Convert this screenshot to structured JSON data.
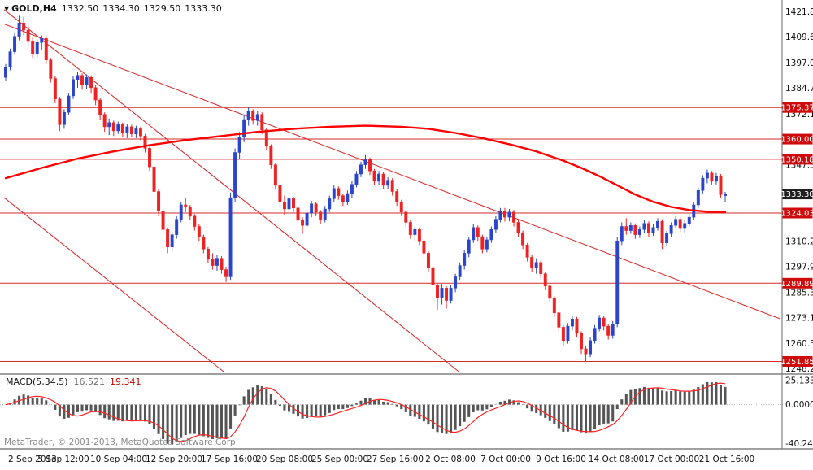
{
  "header": {
    "marker": "▼",
    "symbol": "GOLD,H4",
    "open": "1332.50",
    "high": "1334.30",
    "low": "1329.50",
    "close": "1333.30"
  },
  "footer": {
    "copyright": "MetaTrader, © 2001-2013, MetaQuotes Software Corp."
  },
  "macd_panel": {
    "title": "MACD(5,34,5)",
    "value": "16.521",
    "signal_value": "19.341"
  },
  "colors": {
    "up_candle": "#2b44cc",
    "down_candle": "#ee2222",
    "ma_line": "#ff0000",
    "hline": "#d42a2a",
    "trendline": "#d83030",
    "tag_bg": "#cf0a0a",
    "tag_text": "#ffffff",
    "current_tag_bg": "#1f1f1f",
    "current_line": "#a8a8a8",
    "macd_bar": "#555555",
    "macd_signal": "#ff2222",
    "separator": "#808080",
    "axis_text": "#111111"
  },
  "chart_data": {
    "type": "candlestick",
    "title": "GOLD,H4",
    "symbol": "GOLD",
    "timeframe": "H4",
    "current_price": 1333.3,
    "current_bar": {
      "open": 1332.5,
      "high": 1334.3,
      "low": 1329.5,
      "close": 1333.3
    },
    "y_range": {
      "max": 1424.5,
      "min": 1246.5
    },
    "y_axis_labels": [
      1421.85,
      1409.6,
      1397.0,
      1384.75,
      1372.15,
      1347.3,
      1310.2,
      1297.95,
      1285.35,
      1273.1,
      1260.5,
      1248.25
    ],
    "hlines": [
      1375.37,
      1360.0,
      1350.18,
      1324.03,
      1289.89,
      1251.85
    ],
    "x_labels": [
      "2 Sep 2013",
      "5 Sep 12:00",
      "10 Sep 04:00",
      "12 Sep 20:00",
      "17 Sep 16:00",
      "20 Sep 08:00",
      "25 Sep 00:00",
      "27 Sep 16:00",
      "2 Oct 08:00",
      "7 Oct 00:00",
      "9 Oct 16:00",
      "14 Oct 08:00",
      "17 Oct 00:00",
      "21 Oct 16:00"
    ],
    "trendlines": [
      {
        "x1_frac": 0.0,
        "p1": 1423.0,
        "x2_frac": 0.587,
        "p2": 1246.5
      },
      {
        "x1_frac": 0.0,
        "p1": 1331.5,
        "x2_frac": 0.284,
        "p2": 1246.5
      },
      {
        "x1_frac": 0.0,
        "p1": 1416.0,
        "x2_frac": 1.0,
        "p2": 1272.5
      }
    ],
    "ma": {
      "name": "moving-average",
      "points": [
        [
          0,
          1341
        ],
        [
          8,
          1346
        ],
        [
          16,
          1350.5
        ],
        [
          24,
          1354
        ],
        [
          32,
          1357
        ],
        [
          40,
          1359.5
        ],
        [
          48,
          1361.5
        ],
        [
          56,
          1363.5
        ],
        [
          64,
          1365
        ],
        [
          72,
          1366
        ],
        [
          80,
          1366.5
        ],
        [
          88,
          1366
        ],
        [
          94,
          1365
        ],
        [
          100,
          1363
        ],
        [
          106,
          1360.5
        ],
        [
          112,
          1357.5
        ],
        [
          118,
          1354
        ],
        [
          124,
          1349.5
        ],
        [
          128,
          1346
        ],
        [
          132,
          1342
        ],
        [
          136,
          1337.5
        ],
        [
          140,
          1333
        ],
        [
          144,
          1329.5
        ],
        [
          148,
          1327
        ],
        [
          152,
          1325.5
        ],
        [
          156,
          1324.7
        ],
        [
          160,
          1324.5
        ]
      ]
    },
    "candles": [
      [
        1390,
        1396.5,
        1388.5,
        1395
      ],
      [
        1395,
        1404,
        1393.5,
        1402.5
      ],
      [
        1402.5,
        1412,
        1401,
        1410
      ],
      [
        1410,
        1420,
        1408,
        1416.5
      ],
      [
        1416.5,
        1419.5,
        1410.5,
        1413
      ],
      [
        1413,
        1415.5,
        1405.5,
        1407.5
      ],
      [
        1407.5,
        1409.5,
        1399.5,
        1401.5
      ],
      [
        1401.5,
        1408.5,
        1399.9,
        1407
      ],
      [
        1407,
        1410.5,
        1403.5,
        1409
      ],
      [
        1409,
        1410,
        1396.5,
        1398.5
      ],
      [
        1398.5,
        1399.5,
        1387.5,
        1389.5
      ],
      [
        1389.5,
        1390.5,
        1377.5,
        1379.5
      ],
      [
        1379.5,
        1380.5,
        1363.9,
        1367
      ],
      [
        1367,
        1374.5,
        1365,
        1373
      ],
      [
        1373,
        1382.5,
        1371.5,
        1381
      ],
      [
        1381,
        1390.5,
        1379.5,
        1389
      ],
      [
        1389,
        1392.5,
        1385,
        1391
      ],
      [
        1391,
        1392,
        1384,
        1386.5
      ],
      [
        1386.5,
        1391.5,
        1384.5,
        1390
      ],
      [
        1390,
        1391,
        1382.5,
        1385
      ],
      [
        1385,
        1386.5,
        1376.5,
        1379
      ],
      [
        1379,
        1380,
        1369.5,
        1372
      ],
      [
        1372,
        1373,
        1363.5,
        1366
      ],
      [
        1366,
        1370,
        1362,
        1368
      ],
      [
        1368,
        1369,
        1361.5,
        1364
      ],
      [
        1364,
        1368.5,
        1362.5,
        1367
      ],
      [
        1367,
        1368,
        1361,
        1363
      ],
      [
        1363,
        1367.5,
        1360.5,
        1366
      ],
      [
        1366,
        1367,
        1360.9,
        1362.5
      ],
      [
        1362.5,
        1366.5,
        1360.5,
        1365
      ],
      [
        1365,
        1366,
        1359.5,
        1361.5
      ],
      [
        1361.5,
        1362.5,
        1353.5,
        1355.5
      ],
      [
        1355.5,
        1356.5,
        1344.5,
        1346.5
      ],
      [
        1346.5,
        1347.5,
        1332.5,
        1334.5
      ],
      [
        1334.5,
        1336,
        1322.5,
        1325
      ],
      [
        1325,
        1326,
        1313.5,
        1316
      ],
      [
        1316,
        1317,
        1304.5,
        1307.5
      ],
      [
        1307.5,
        1315,
        1305.5,
        1313.5
      ],
      [
        1313.5,
        1322.5,
        1311.5,
        1321
      ],
      [
        1321,
        1329.5,
        1319.5,
        1328
      ],
      [
        1328,
        1331.5,
        1324.5,
        1327
      ],
      [
        1327,
        1328,
        1320.5,
        1322.5
      ],
      [
        1322.5,
        1323.5,
        1315.5,
        1317.5
      ],
      [
        1317.5,
        1318.5,
        1310.5,
        1312.5
      ],
      [
        1312.5,
        1313.5,
        1304.5,
        1306.5
      ],
      [
        1306.5,
        1307.5,
        1299.5,
        1301.5
      ],
      [
        1301.5,
        1304.5,
        1296.5,
        1298.5
      ],
      [
        1298.5,
        1303.5,
        1296,
        1302
      ],
      [
        1302,
        1303,
        1294.5,
        1296.5
      ],
      [
        1296.5,
        1298,
        1290.5,
        1293
      ],
      [
        1293,
        1334,
        1291.5,
        1331.5
      ],
      [
        1331.5,
        1355.5,
        1329.5,
        1353.5
      ],
      [
        1353.5,
        1363.5,
        1350.5,
        1361
      ],
      [
        1361,
        1372,
        1358.5,
        1369.5
      ],
      [
        1369.5,
        1375.4,
        1366.5,
        1373.5
      ],
      [
        1373.5,
        1374.5,
        1367,
        1369
      ],
      [
        1369,
        1373.5,
        1366.5,
        1372
      ],
      [
        1372,
        1373,
        1362.5,
        1364.5
      ],
      [
        1364.5,
        1365.5,
        1354.5,
        1356.5
      ],
      [
        1356.5,
        1357.5,
        1345.5,
        1347.5
      ],
      [
        1347.5,
        1348.5,
        1335.5,
        1337.5
      ],
      [
        1337.5,
        1339,
        1327.5,
        1329.5
      ],
      [
        1329.5,
        1332.5,
        1322.9,
        1326
      ],
      [
        1326,
        1332.5,
        1324,
        1331
      ],
      [
        1331,
        1332,
        1324.5,
        1326.5
      ],
      [
        1326.5,
        1327.5,
        1318.5,
        1320.5
      ],
      [
        1320.5,
        1322,
        1313.9,
        1318
      ],
      [
        1318,
        1325.5,
        1316.5,
        1324
      ],
      [
        1324,
        1330,
        1322,
        1328.5
      ],
      [
        1328.5,
        1329.5,
        1322.5,
        1324.5
      ],
      [
        1324.5,
        1325.5,
        1318.5,
        1321
      ],
      [
        1321,
        1327.5,
        1319.5,
        1326
      ],
      [
        1326,
        1332.5,
        1324.5,
        1331
      ],
      [
        1331,
        1337.5,
        1329.5,
        1336
      ],
      [
        1336,
        1337,
        1330.5,
        1332.5
      ],
      [
        1332.5,
        1333.5,
        1327.5,
        1329.5
      ],
      [
        1329.5,
        1335,
        1328,
        1333.5
      ],
      [
        1333.5,
        1339.5,
        1331.5,
        1338
      ],
      [
        1338,
        1344.5,
        1336.5,
        1343
      ],
      [
        1343,
        1349,
        1341.5,
        1347.5
      ],
      [
        1347.5,
        1352.2,
        1345.5,
        1350
      ],
      [
        1350,
        1351,
        1342.5,
        1344.5
      ],
      [
        1344.5,
        1345.5,
        1337.5,
        1339.5
      ],
      [
        1339.5,
        1344.5,
        1337.9,
        1343
      ],
      [
        1343,
        1344,
        1335.5,
        1337.5
      ],
      [
        1337.5,
        1341.5,
        1335.9,
        1340
      ],
      [
        1340,
        1341,
        1332.5,
        1334.5
      ],
      [
        1334.5,
        1335.5,
        1327.5,
        1329.5
      ],
      [
        1329.5,
        1330.5,
        1322.5,
        1324.5
      ],
      [
        1324.5,
        1325.5,
        1317.5,
        1319.5
      ],
      [
        1319.5,
        1320.5,
        1311.5,
        1313.5
      ],
      [
        1313.5,
        1317.5,
        1310.5,
        1316
      ],
      [
        1316,
        1317,
        1308.5,
        1310.5
      ],
      [
        1310.5,
        1311.5,
        1302.5,
        1304.5
      ],
      [
        1304.5,
        1305.5,
        1295.5,
        1297.5
      ],
      [
        1297.5,
        1298.5,
        1285.5,
        1289
      ],
      [
        1289,
        1290,
        1276.9,
        1283
      ],
      [
        1283,
        1289.5,
        1279.5,
        1287.5
      ],
      [
        1287.5,
        1288.5,
        1277.5,
        1281.5
      ],
      [
        1281.5,
        1289,
        1280,
        1287.5
      ],
      [
        1287.5,
        1294.5,
        1285.5,
        1293
      ],
      [
        1293,
        1300,
        1291.5,
        1298.5
      ],
      [
        1298.5,
        1306,
        1296.5,
        1304.5
      ],
      [
        1304.5,
        1312.5,
        1302.5,
        1311
      ],
      [
        1311,
        1318.5,
        1309.5,
        1317
      ],
      [
        1317,
        1318,
        1310.5,
        1312.5
      ],
      [
        1312.5,
        1313.5,
        1304.5,
        1306.5
      ],
      [
        1306.5,
        1312.5,
        1304.9,
        1311
      ],
      [
        1311,
        1317.5,
        1309.5,
        1316
      ],
      [
        1316,
        1322.5,
        1314.5,
        1321
      ],
      [
        1321,
        1326.5,
        1319.5,
        1325
      ],
      [
        1325,
        1326.5,
        1319.9,
        1322
      ],
      [
        1322,
        1326,
        1320,
        1324.5
      ],
      [
        1324.5,
        1325.5,
        1317.5,
        1319.5
      ],
      [
        1319.5,
        1320.5,
        1312.5,
        1314.5
      ],
      [
        1314.5,
        1315.5,
        1306.5,
        1308.5
      ],
      [
        1308.5,
        1309.5,
        1300.5,
        1302.5
      ],
      [
        1302.5,
        1303.5,
        1295.5,
        1297.5
      ],
      [
        1297.5,
        1302,
        1294.5,
        1300
      ],
      [
        1300,
        1301,
        1292.5,
        1294.5
      ],
      [
        1294.5,
        1295.5,
        1286.5,
        1288.5
      ],
      [
        1288.5,
        1289.5,
        1280.5,
        1282.5
      ],
      [
        1282.5,
        1283.5,
        1273.5,
        1275.5
      ],
      [
        1275.5,
        1276.5,
        1266.5,
        1268.5
      ],
      [
        1268.5,
        1269.5,
        1259.5,
        1262
      ],
      [
        1262,
        1270.5,
        1260.5,
        1269
      ],
      [
        1269,
        1274,
        1267,
        1272.5
      ],
      [
        1272.5,
        1273.5,
        1263.5,
        1265.5
      ],
      [
        1265.5,
        1266.5,
        1255.5,
        1258
      ],
      [
        1258,
        1259.5,
        1251.9,
        1255.5
      ],
      [
        1255.5,
        1263.5,
        1253.9,
        1262
      ],
      [
        1262,
        1269.5,
        1260.5,
        1268
      ],
      [
        1268,
        1274.5,
        1266.5,
        1273
      ],
      [
        1273,
        1274,
        1266.9,
        1269
      ],
      [
        1269,
        1270,
        1262.5,
        1264.5
      ],
      [
        1264.5,
        1271.5,
        1262.9,
        1270
      ],
      [
        1270,
        1312.5,
        1268.5,
        1310.5
      ],
      [
        1310.5,
        1319.5,
        1308.5,
        1317.5
      ],
      [
        1317.5,
        1321.5,
        1313.5,
        1315.5
      ],
      [
        1315.5,
        1319.5,
        1313.9,
        1318
      ],
      [
        1318,
        1319,
        1311.5,
        1313.5
      ],
      [
        1313.5,
        1317.5,
        1311.9,
        1316
      ],
      [
        1316,
        1320.5,
        1314.5,
        1319
      ],
      [
        1319,
        1320,
        1312.5,
        1314.5
      ],
      [
        1314.5,
        1318.5,
        1312.9,
        1317
      ],
      [
        1317,
        1321.5,
        1315.5,
        1320
      ],
      [
        1320,
        1321,
        1306.5,
        1309.5
      ],
      [
        1309.5,
        1315.5,
        1307.9,
        1314
      ],
      [
        1314,
        1319.5,
        1312.5,
        1318
      ],
      [
        1318,
        1322.5,
        1316.5,
        1321
      ],
      [
        1321,
        1322,
        1314.9,
        1316.5
      ],
      [
        1316.5,
        1320.5,
        1314.5,
        1319
      ],
      [
        1319,
        1323.5,
        1317.5,
        1322
      ],
      [
        1322,
        1329.5,
        1320.5,
        1328
      ],
      [
        1328,
        1336.5,
        1326.5,
        1335
      ],
      [
        1335,
        1342.5,
        1333.5,
        1341
      ],
      [
        1341,
        1345.2,
        1338.5,
        1343.5
      ],
      [
        1343.5,
        1344.5,
        1337.5,
        1339.5
      ],
      [
        1339.5,
        1343.5,
        1337.9,
        1342
      ],
      [
        1342,
        1343,
        1331.5,
        1333
      ],
      [
        1332.5,
        1334.3,
        1329.5,
        1333.3
      ]
    ],
    "macd": {
      "type": "histogram+signal-line",
      "params": "5,34,5",
      "current_value": 16.521,
      "current_signal": 19.341,
      "axis_labels": [
        "25.133",
        "0.0000",
        "-40.245"
      ],
      "axis_values": [
        25.133,
        0,
        -40.245
      ],
      "range": {
        "max": 30,
        "min": -45
      },
      "derivation": "histogram = EMA5(close) - EMA34(close); signal = SMA5(histogram)"
    }
  }
}
